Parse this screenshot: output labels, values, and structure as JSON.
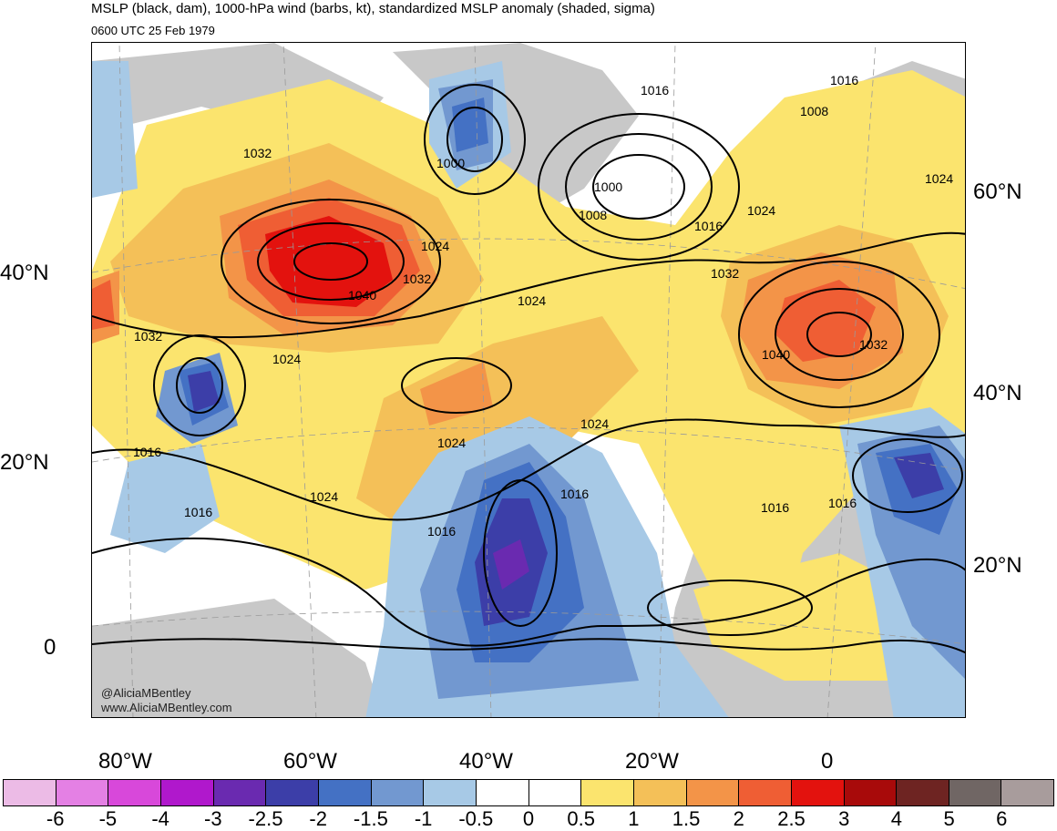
{
  "header": {
    "title": "MSLP (black, dam), 1000-hPa wind (barbs, kt), standardized MSLP anomaly (shaded, sigma)",
    "subtitle": "0600 UTC 25 Feb 1979"
  },
  "credits": [
    "@AliciaMBentley",
    "www.AliciaMBentley.com"
  ],
  "axes": {
    "lon_labels": [
      "80°W",
      "60°W",
      "40°W",
      "20°W",
      "0"
    ],
    "lat_labels_left": [
      "40°N",
      "20°N",
      "0"
    ],
    "lat_labels_right": [
      "60°N",
      "40°N",
      "20°N"
    ]
  },
  "isobar_labels": [
    "1016",
    "1016",
    "1008",
    "1000",
    "1008",
    "1032",
    "1024",
    "1032",
    "1040",
    "1024",
    "1016",
    "1024",
    "1032",
    "1040",
    "1032",
    "1024",
    "1000",
    "1032",
    "1024",
    "1016",
    "1016",
    "1024",
    "1024",
    "1016",
    "1016",
    "1024",
    "1016",
    "1016"
  ],
  "colorbar": {
    "colors": [
      "#ecbbe6",
      "#e480e4",
      "#d848da",
      "#b018cc",
      "#6a2ab0",
      "#3c3ea8",
      "#4471c4",
      "#7298d0",
      "#a7c9e6",
      "#ffffff",
      "#ffffff",
      "#fbe46e",
      "#f4c058",
      "#f39448",
      "#ef5e34",
      "#e3120e",
      "#a80a0a",
      "#6e2422",
      "#706664",
      "#a89c9c"
    ],
    "tick_labels": [
      "-6",
      "-5",
      "-4",
      "-3",
      "-2.5",
      "-2",
      "-1.5",
      "-1",
      "-0.5",
      "0",
      "0.5",
      "1",
      "1.5",
      "2",
      "2.5",
      "3",
      "4",
      "5",
      "6"
    ]
  }
}
